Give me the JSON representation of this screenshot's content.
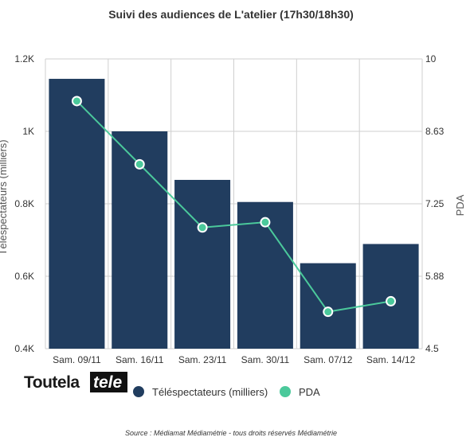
{
  "chart_data": {
    "type": "bar",
    "title": "Suivi des audiences de L'atelier (17h30/18h30)",
    "categories": [
      "Sam. 09/11",
      "Sam. 16/11",
      "Sam. 23/11",
      "Sam. 30/11",
      "Sam. 07/12",
      "Sam. 14/12"
    ],
    "series": [
      {
        "name": "Téléspectateurs (milliers)",
        "type": "bar",
        "axis": "left",
        "color": "#213d5f",
        "values": [
          1145,
          1000,
          866,
          805,
          636,
          689
        ]
      },
      {
        "name": "PDA",
        "type": "line",
        "axis": "right",
        "color": "#4bc99b",
        "values": [
          9.2,
          8.0,
          6.8,
          6.9,
          5.2,
          5.4
        ]
      }
    ],
    "ylabel": "Téléspectateurs (milliers)",
    "ylabel_right": "PDA",
    "ylim": [
      400,
      1200
    ],
    "ylim_right": [
      4.5,
      10
    ],
    "yticks": [
      "0.4K",
      "0.6K",
      "0.8K",
      "1K",
      "1.2K"
    ],
    "yticks_right": [
      "4.5",
      "5.88",
      "7.25",
      "8.63",
      "10"
    ],
    "grid": true,
    "legend_position": "bottom-center"
  },
  "logo": {
    "part1": "Toutela",
    "part2": "tele"
  },
  "source": "Source : Médiamat Médiamétrie - tous droits réservés Médiamétrie"
}
